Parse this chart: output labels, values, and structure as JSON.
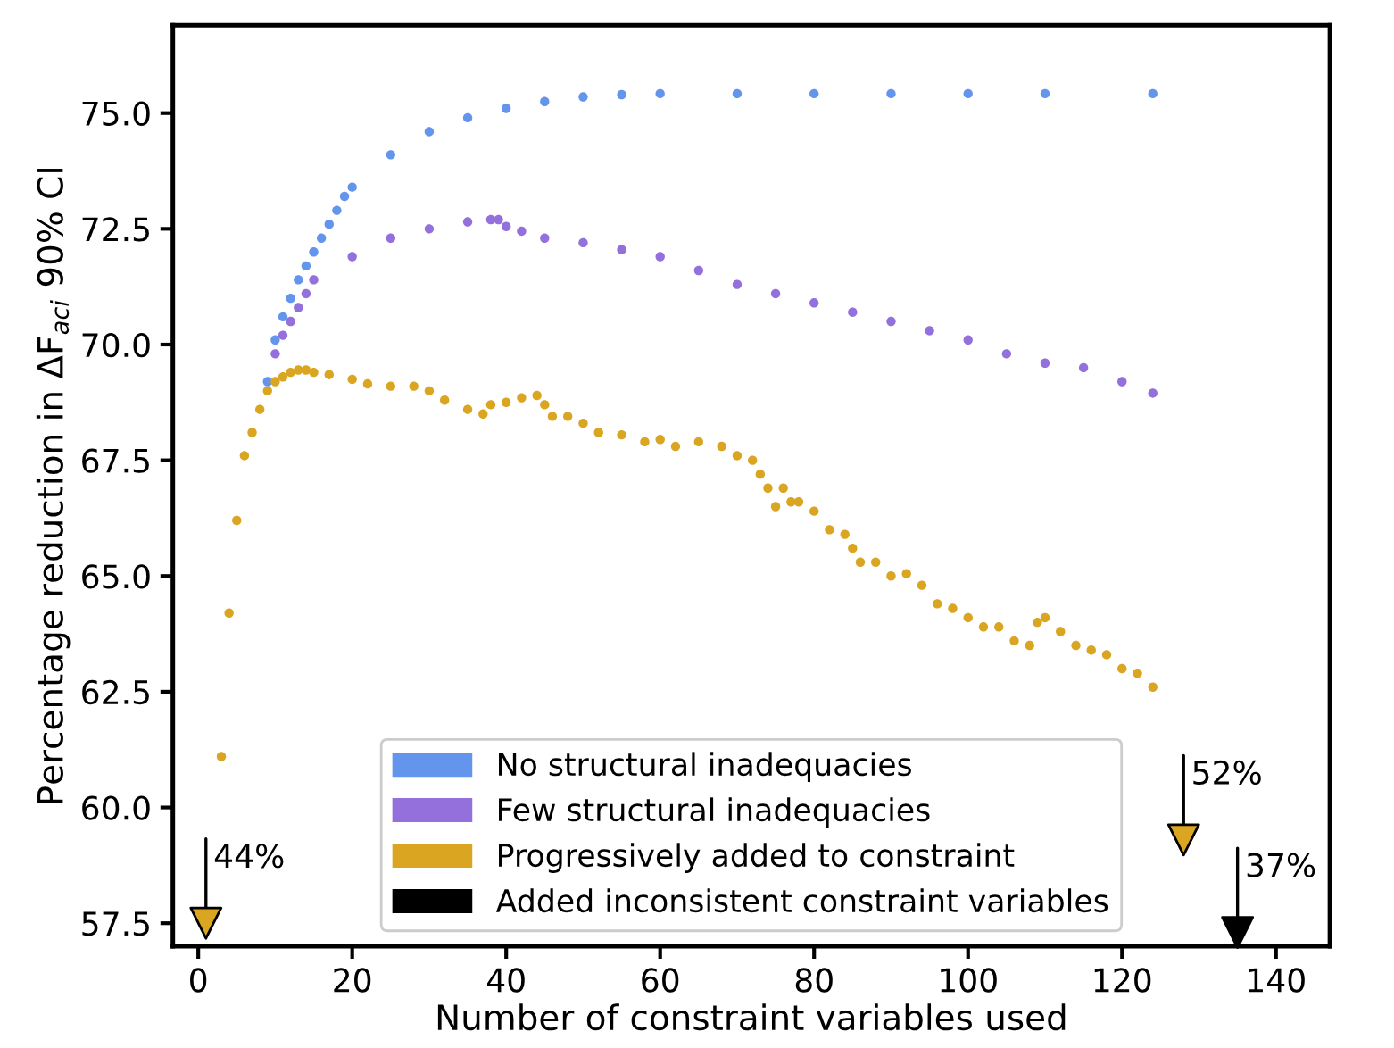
{
  "chart_data": {
    "type": "scatter",
    "xlabel": "Number of constraint variables used",
    "ylabel": "Percentage reduction in ΔF$_{aci}$ 90% CI",
    "xlim": [
      -3.3,
      147
    ],
    "ylim": [
      57.0,
      76.9
    ],
    "xticks": [
      0,
      20,
      40,
      60,
      80,
      100,
      120,
      140
    ],
    "yticks": [
      {
        "value": 57.5,
        "label": "57.5"
      },
      {
        "value": 60,
        "label": "60.0"
      },
      {
        "value": 62.5,
        "label": "62.5"
      },
      {
        "value": 65,
        "label": "65.0"
      },
      {
        "value": 67.5,
        "label": "67.5"
      },
      {
        "value": 70,
        "label": "70.0"
      },
      {
        "value": 72.5,
        "label": "72.5"
      },
      {
        "value": 75,
        "label": "75.0"
      }
    ],
    "grid": false,
    "legend": "bottom",
    "marker": "circle",
    "series": [
      {
        "name": "No structural inadequacies",
        "color": "#6495ed",
        "x": [
          9,
          10,
          11,
          12,
          13,
          14,
          15,
          16,
          17,
          18,
          19,
          20,
          25,
          30,
          35,
          40,
          45,
          50,
          55,
          60,
          70,
          80,
          90,
          100,
          110,
          124
        ],
        "values": [
          69.2,
          70.1,
          70.6,
          71.0,
          71.4,
          71.7,
          72.0,
          72.3,
          72.6,
          72.9,
          73.2,
          73.4,
          74.1,
          74.6,
          74.9,
          75.1,
          75.25,
          75.35,
          75.4,
          75.42,
          75.42,
          75.42,
          75.42,
          75.42,
          75.42,
          75.42
        ]
      },
      {
        "name": "Few structural inadequacies",
        "color": "#9370db",
        "x": [
          10,
          11,
          12,
          13,
          14,
          15,
          20,
          25,
          30,
          35,
          38,
          39,
          40,
          42,
          45,
          50,
          55,
          60,
          65,
          70,
          75,
          80,
          85,
          90,
          95,
          100,
          105,
          110,
          115,
          120,
          124
        ],
        "values": [
          69.8,
          70.2,
          70.5,
          70.8,
          71.1,
          71.4,
          71.9,
          72.3,
          72.5,
          72.65,
          72.7,
          72.7,
          72.55,
          72.45,
          72.3,
          72.2,
          72.05,
          71.9,
          71.6,
          71.3,
          71.1,
          70.9,
          70.7,
          70.5,
          70.3,
          70.1,
          69.8,
          69.6,
          69.5,
          69.2,
          68.95
        ]
      },
      {
        "name": "Progressively added to constraint",
        "color": "#daa520",
        "x": [
          3,
          4,
          5,
          6,
          7,
          8,
          9,
          10,
          11,
          12,
          13,
          14,
          15,
          17,
          20,
          22,
          25,
          28,
          30,
          32,
          35,
          37,
          38,
          40,
          42,
          44,
          45,
          46,
          48,
          50,
          52,
          55,
          58,
          60,
          62,
          65,
          68,
          70,
          72,
          73,
          74,
          75,
          76,
          77,
          78,
          80,
          82,
          84,
          85,
          86,
          88,
          90,
          92,
          94,
          96,
          98,
          100,
          102,
          104,
          106,
          108,
          109,
          110,
          112,
          114,
          116,
          118,
          120,
          122,
          124
        ],
        "values": [
          61.1,
          64.2,
          66.2,
          67.6,
          68.1,
          68.6,
          69.0,
          69.2,
          69.3,
          69.4,
          69.45,
          69.45,
          69.4,
          69.35,
          69.25,
          69.15,
          69.1,
          69.1,
          69.0,
          68.8,
          68.6,
          68.5,
          68.7,
          68.75,
          68.85,
          68.9,
          68.7,
          68.45,
          68.45,
          68.3,
          68.1,
          68.05,
          67.9,
          67.95,
          67.8,
          67.9,
          67.8,
          67.6,
          67.5,
          67.2,
          66.9,
          66.5,
          66.9,
          66.6,
          66.6,
          66.4,
          66.0,
          65.9,
          65.6,
          65.3,
          65.3,
          65.0,
          65.05,
          64.8,
          64.4,
          64.3,
          64.1,
          63.9,
          63.9,
          63.6,
          63.5,
          64.0,
          64.1,
          63.8,
          63.5,
          63.4,
          63.3,
          63.0,
          62.9,
          62.6
        ]
      },
      {
        "color": "#daa520",
        "marker": "triangle",
        "x": [
          1,
          128
        ],
        "values": [
          57.5,
          59.3
        ]
      },
      {
        "name": "Added inconsistent constraint variables",
        "color": "#000000",
        "marker": "triangle",
        "x": [
          135
        ],
        "values": [
          57.3
        ]
      }
    ],
    "annotations": [
      {
        "text": "44%",
        "x": 1,
        "y": 57.5
      },
      {
        "text": "52%",
        "x": 128,
        "y": 59.3
      },
      {
        "text": "37%",
        "x": 135,
        "y": 57.3
      }
    ]
  }
}
